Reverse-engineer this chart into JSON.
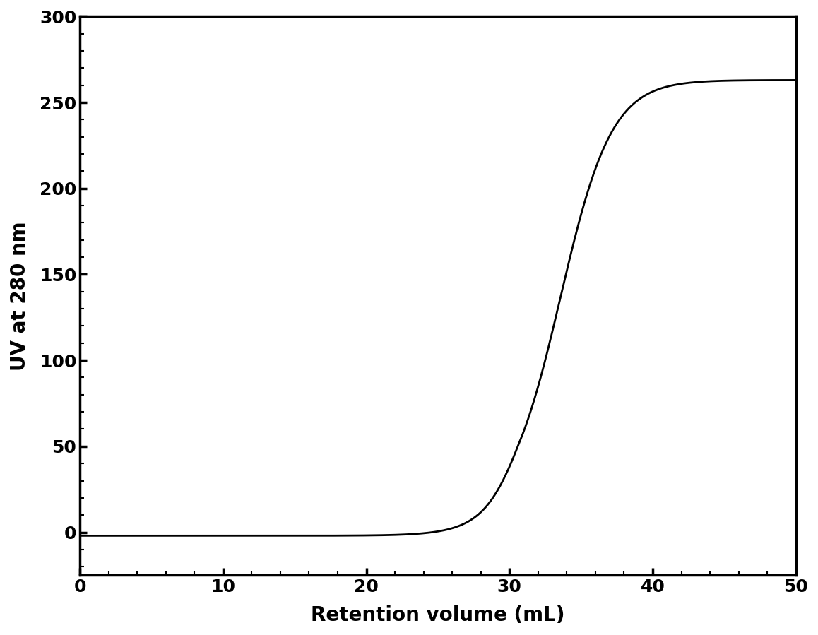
{
  "title": "",
  "xlabel": "Retention volume (mL)",
  "ylabel": "UV at 280 nm",
  "xlim": [
    0,
    50
  ],
  "ylim": [
    -25,
    300
  ],
  "yticks": [
    0,
    50,
    100,
    150,
    200,
    250,
    300
  ],
  "xticks": [
    0,
    10,
    20,
    30,
    40,
    50
  ],
  "line_color": "#000000",
  "line_width": 2.0,
  "background_color": "#ffffff",
  "sigmoid_x0": 33.5,
  "sigmoid_k": 0.55,
  "sigmoid_max": 263.0,
  "sigmoid_min": -2.0,
  "xlabel_fontsize": 20,
  "ylabel_fontsize": 20,
  "tick_fontsize": 18,
  "label_fontweight": "bold",
  "spine_linewidth": 2.5
}
